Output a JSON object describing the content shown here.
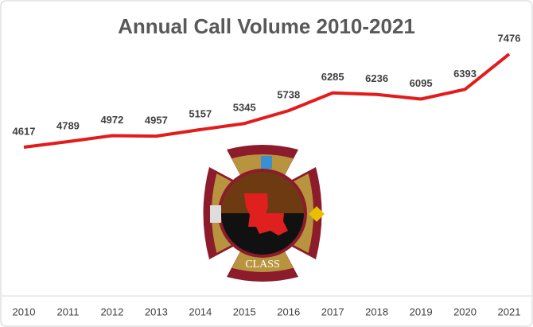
{
  "chart_data": {
    "type": "line",
    "title": "Annual Call Volume 2010-2021",
    "categories": [
      "2010",
      "2011",
      "2012",
      "2013",
      "2014",
      "2015",
      "2016",
      "2017",
      "2018",
      "2019",
      "2020",
      "2021"
    ],
    "values": [
      4617,
      4789,
      4972,
      4957,
      5157,
      5345,
      5738,
      6285,
      6236,
      6095,
      6393,
      7476
    ],
    "color": "#e31b1b",
    "logo_text": "CLASS"
  }
}
